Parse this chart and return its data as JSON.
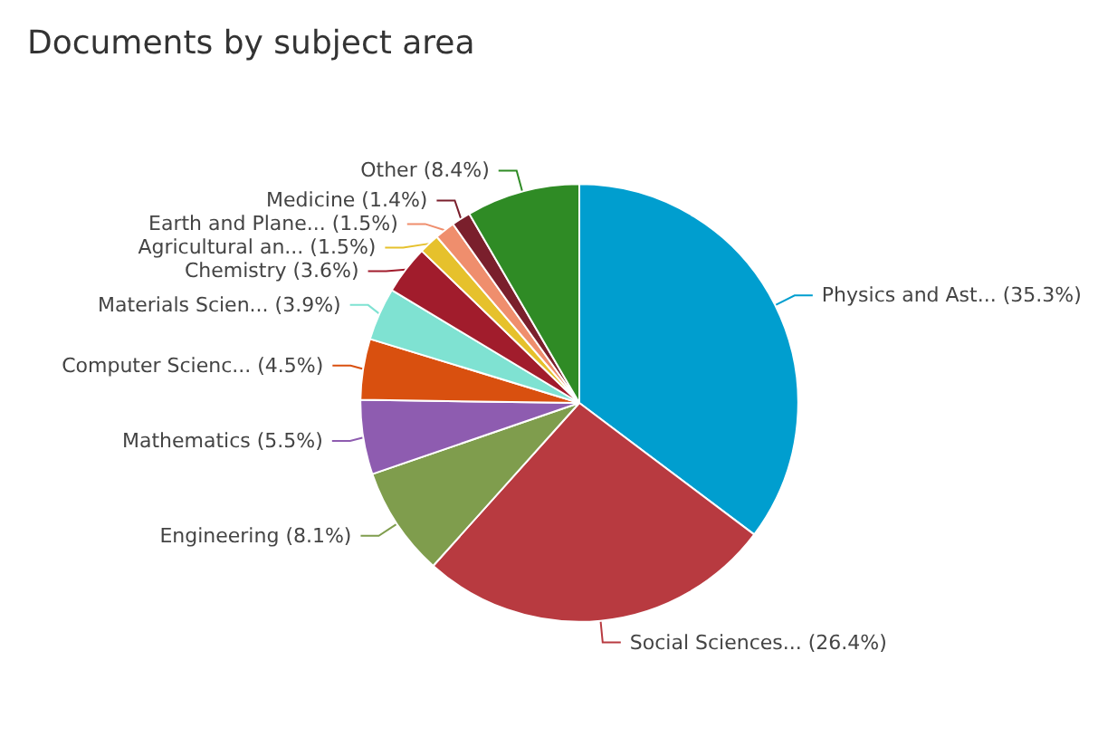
{
  "chart_data": {
    "type": "pie",
    "title": "Documents by subject area",
    "categories": [
      "Physics and Ast...",
      "Social Sciences...",
      "Engineering",
      "Mathematics",
      "Computer Scienc...",
      "Materials Scien...",
      "Chemistry",
      "Agricultural an...",
      "Earth and Plane...",
      "Medicine",
      "Other"
    ],
    "values": [
      35.3,
      26.4,
      8.1,
      5.5,
      4.5,
      3.9,
      3.6,
      1.5,
      1.5,
      1.4,
      8.4
    ],
    "value_labels": [
      "(35.3%)",
      "(26.4%)",
      "(8.1%)",
      "(5.5%)",
      "(4.5%)",
      "(3.9%)",
      "(3.6%)",
      "(1.5%)",
      "(1.5%)",
      "(1.4%)",
      "(8.4%)"
    ],
    "colors": [
      "#009ecf",
      "#b83a40",
      "#7f9d4d",
      "#8e5cb0",
      "#d9500f",
      "#7fe2d2",
      "#a11c2c",
      "#e6c12c",
      "#ef8e6d",
      "#7a1f2c",
      "#2f8b25"
    ],
    "legend": false
  }
}
